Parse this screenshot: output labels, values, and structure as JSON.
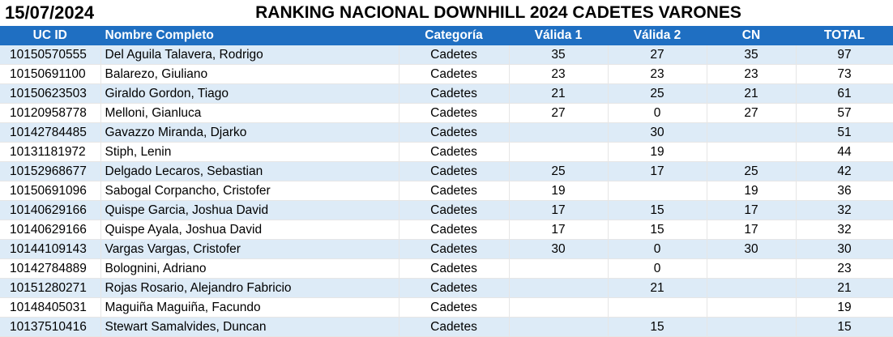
{
  "date": "15/07/2024",
  "title": "RANKING NACIONAL DOWNHILL 2024 CADETES VARONES",
  "headers": {
    "uc_id": "UC ID",
    "nombre": "Nombre Completo",
    "categoria": "Categoría",
    "valida1": "Válida 1",
    "valida2": "Válida 2",
    "cn": "CN",
    "total": "TOTAL"
  },
  "rows": [
    {
      "uc_id": "10150570555",
      "nombre": "Del Aguila Talavera, Rodrigo",
      "categoria": "Cadetes",
      "valida1": "35",
      "valida2": "27",
      "cn": "35",
      "total": "97"
    },
    {
      "uc_id": "10150691100",
      "nombre": "Balarezo, Giuliano",
      "categoria": "Cadetes",
      "valida1": "23",
      "valida2": "23",
      "cn": "23",
      "total": "73"
    },
    {
      "uc_id": "10150623503",
      "nombre": "Giraldo Gordon, Tiago",
      "categoria": "Cadetes",
      "valida1": "21",
      "valida2": "25",
      "cn": "21",
      "total": "61"
    },
    {
      "uc_id": "10120958778",
      "nombre": "Melloni, Gianluca",
      "categoria": "Cadetes",
      "valida1": "27",
      "valida2": "0",
      "cn": "27",
      "total": "57"
    },
    {
      "uc_id": "10142784485",
      "nombre": "Gavazzo Miranda, Djarko",
      "categoria": "Cadetes",
      "valida1": "",
      "valida2": "30",
      "cn": "",
      "total": "51"
    },
    {
      "uc_id": "10131181972",
      "nombre": "Stiph, Lenin",
      "categoria": "Cadetes",
      "valida1": "",
      "valida2": "19",
      "cn": "",
      "total": "44"
    },
    {
      "uc_id": "10152968677",
      "nombre": "Delgado Lecaros, Sebastian",
      "categoria": "Cadetes",
      "valida1": "25",
      "valida2": "17",
      "cn": "25",
      "total": "42"
    },
    {
      "uc_id": "10150691096",
      "nombre": "Sabogal Corpancho, Cristofer",
      "categoria": "Cadetes",
      "valida1": "19",
      "valida2": "",
      "cn": "19",
      "total": "36"
    },
    {
      "uc_id": "10140629166",
      "nombre": "Quispe Garcia, Joshua David",
      "categoria": "Cadetes",
      "valida1": "17",
      "valida2": "15",
      "cn": "17",
      "total": "32"
    },
    {
      "uc_id": "10140629166",
      "nombre": "Quispe Ayala, Joshua David",
      "categoria": "Cadetes",
      "valida1": "17",
      "valida2": "15",
      "cn": "17",
      "total": "32"
    },
    {
      "uc_id": "10144109143",
      "nombre": "Vargas Vargas, Cristofer",
      "categoria": "Cadetes",
      "valida1": "30",
      "valida2": "0",
      "cn": "30",
      "total": "30"
    },
    {
      "uc_id": "10142784889",
      "nombre": "Bolognini, Adriano",
      "categoria": "Cadetes",
      "valida1": "",
      "valida2": "0",
      "cn": "",
      "total": "23"
    },
    {
      "uc_id": "10151280271",
      "nombre": "Rojas Rosario, Alejandro Fabricio",
      "categoria": "Cadetes",
      "valida1": "",
      "valida2": "21",
      "cn": "",
      "total": "21"
    },
    {
      "uc_id": "10148405031",
      "nombre": "Maguiña Maguiña, Facundo",
      "categoria": "Cadetes",
      "valida1": "",
      "valida2": "",
      "cn": "",
      "total": "19"
    },
    {
      "uc_id": "10137510416",
      "nombre": "Stewart Samalvides, Duncan",
      "categoria": "Cadetes",
      "valida1": "",
      "valida2": "15",
      "cn": "",
      "total": "15"
    }
  ],
  "colors": {
    "header_bg": "#1F6FC2",
    "band": "#DDEBF7"
  }
}
